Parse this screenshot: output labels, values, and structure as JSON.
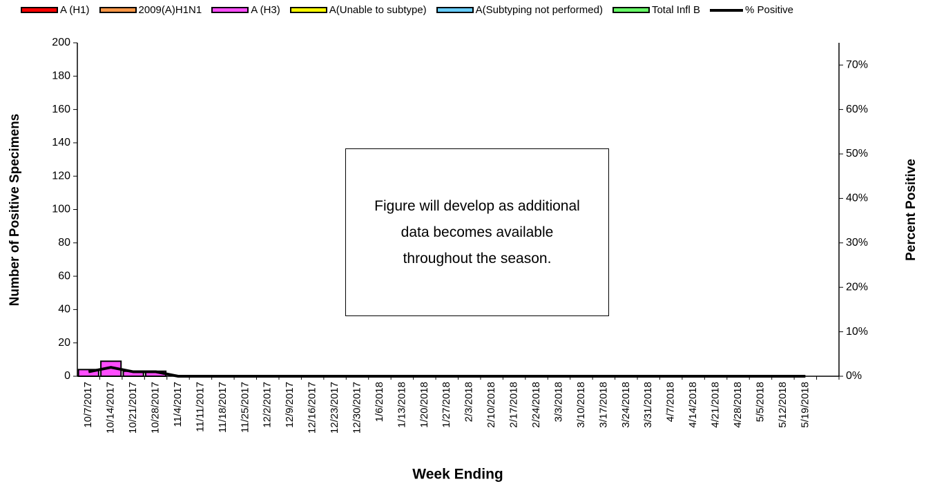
{
  "chart_data": {
    "type": "bar",
    "categories": [
      "10/7/2017",
      "10/14/2017",
      "10/21/2017",
      "10/28/2017",
      "11/4/2017",
      "11/11/2017",
      "11/18/2017",
      "11/25/2017",
      "12/2/2017",
      "12/9/2017",
      "12/16/2017",
      "12/23/2017",
      "12/30/2017",
      "1/6/2018",
      "1/13/2018",
      "1/20/2018",
      "1/27/2018",
      "2/3/2018",
      "2/10/2018",
      "2/17/2018",
      "2/24/2018",
      "3/3/2018",
      "3/10/2018",
      "3/17/2018",
      "3/24/2018",
      "3/31/2018",
      "4/7/2018",
      "4/14/2018",
      "4/21/2018",
      "4/28/2018",
      "5/5/2018",
      "5/12/2018",
      "5/19/2018",
      null
    ],
    "series": [
      {
        "name": "A (H1)",
        "color": "#ff0000",
        "values": [
          0,
          0,
          0,
          0,
          0,
          0,
          0,
          0,
          0,
          0,
          0,
          0,
          0,
          0,
          0,
          0,
          0,
          0,
          0,
          0,
          0,
          0,
          0,
          0,
          0,
          0,
          0,
          0,
          0,
          0,
          0,
          0,
          0,
          null
        ]
      },
      {
        "name": "2009(A)H1N1",
        "color": "#f79646",
        "values": [
          0,
          0,
          0,
          0,
          0,
          0,
          0,
          0,
          0,
          0,
          0,
          0,
          0,
          0,
          0,
          0,
          0,
          0,
          0,
          0,
          0,
          0,
          0,
          0,
          0,
          0,
          0,
          0,
          0,
          0,
          0,
          0,
          0,
          null
        ]
      },
      {
        "name": "A (H3)",
        "color": "#ff4dff",
        "values": [
          4,
          9,
          3,
          3,
          0,
          0,
          0,
          0,
          0,
          0,
          0,
          0,
          0,
          0,
          0,
          0,
          0,
          0,
          0,
          0,
          0,
          0,
          0,
          0,
          0,
          0,
          0,
          0,
          0,
          0,
          0,
          0,
          0,
          null
        ]
      },
      {
        "name": "A(Unable to subtype)",
        "color": "#ffff00",
        "values": [
          0,
          0,
          0,
          0,
          0,
          0,
          0,
          0,
          0,
          0,
          0,
          0,
          0,
          0,
          0,
          0,
          0,
          0,
          0,
          0,
          0,
          0,
          0,
          0,
          0,
          0,
          0,
          0,
          0,
          0,
          0,
          0,
          0,
          null
        ]
      },
      {
        "name": "A(Subtyping not performed)",
        "color": "#66ccff",
        "values": [
          0,
          0,
          0,
          0,
          0,
          0,
          0,
          0,
          0,
          0,
          0,
          0,
          0,
          0,
          0,
          0,
          0,
          0,
          0,
          0,
          0,
          0,
          0,
          0,
          0,
          0,
          0,
          0,
          0,
          0,
          0,
          0,
          0,
          null
        ]
      },
      {
        "name": "Total Infl B",
        "color": "#66ff66",
        "values": [
          0,
          0,
          0,
          0,
          0,
          0,
          0,
          0,
          0,
          0,
          0,
          0,
          0,
          0,
          0,
          0,
          0,
          0,
          0,
          0,
          0,
          0,
          0,
          0,
          0,
          0,
          0,
          0,
          0,
          0,
          0,
          0,
          0,
          null
        ]
      },
      {
        "name": "% Positive",
        "color": "#000000",
        "type": "line",
        "axis": "y2",
        "values": [
          1,
          2,
          1,
          1,
          0,
          0,
          0,
          0,
          0,
          0,
          0,
          0,
          0,
          0,
          0,
          0,
          0,
          0,
          0,
          0,
          0,
          0,
          0,
          0,
          0,
          0,
          0,
          0,
          0,
          0,
          0,
          0,
          0,
          null
        ]
      }
    ],
    "ylabel": "Number of  Positive Specimens",
    "y2label": "Percent Positive",
    "xlabel": "Week Ending",
    "annotation": "Figure will develop as additional data becomes available throughout the season.",
    "ylim": [
      0,
      200
    ],
    "yticks": [
      0,
      20,
      40,
      60,
      80,
      100,
      120,
      140,
      160,
      180,
      200
    ],
    "y2lim": [
      0,
      75
    ],
    "y2ticks": [
      {
        "value": 0,
        "label": "0%"
      },
      {
        "value": 10,
        "label": "10%"
      },
      {
        "value": 20,
        "label": "20%"
      },
      {
        "value": 30,
        "label": "30%"
      },
      {
        "value": 40,
        "label": "40%"
      },
      {
        "value": 50,
        "label": "50%"
      },
      {
        "value": 60,
        "label": "60%"
      },
      {
        "value": 70,
        "label": "70%"
      }
    ],
    "stacked": true,
    "grid": false,
    "legend": "top"
  }
}
